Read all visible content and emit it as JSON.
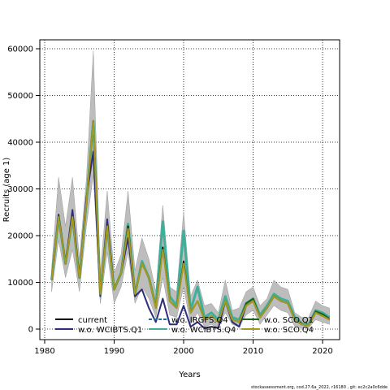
{
  "chart_data": {
    "type": "line",
    "xlabel": "Years",
    "ylabel": "Recruits (age 1)",
    "xlim": [
      1980.5,
      2022
    ],
    "ylim": [
      -2500,
      62000
    ],
    "xticks": [
      1980,
      1990,
      2000,
      2010,
      2020
    ],
    "yticks": [
      0,
      10000,
      20000,
      30000,
      40000,
      50000,
      60000
    ],
    "grid": true,
    "legend_position": "bottom-left",
    "footer": "stockassessment.org, cod.27.6a_2022, r16180 , git: ec2c2a0c6dde",
    "x": [
      1981,
      1982,
      1983,
      1984,
      1985,
      1986,
      1987,
      1988,
      1989,
      1990,
      1991,
      1992,
      1993,
      1994,
      1995,
      1996,
      1997,
      1998,
      1999,
      2000,
      2001,
      2002,
      2003,
      2004,
      2005,
      2006,
      2007,
      2008,
      2009,
      2010,
      2011,
      2012,
      2013,
      2014,
      2015,
      2016,
      2017,
      2018,
      2019,
      2020,
      2021
    ],
    "band": {
      "upper": [
        13000,
        32500,
        22000,
        32500,
        15000,
        32000,
        59500,
        12000,
        29500,
        12000,
        16000,
        29500,
        12500,
        19500,
        15000,
        8000,
        26500,
        9000,
        8000,
        25000,
        7000,
        10500,
        5000,
        5500,
        3500,
        10500,
        4000,
        4500,
        8000,
        9000,
        5000,
        6500,
        10500,
        9000,
        8500,
        3500,
        2500,
        2500,
        6000,
        5000,
        4500
      ],
      "lower": [
        8000,
        19000,
        11000,
        17000,
        8000,
        22000,
        33000,
        5500,
        16500,
        5500,
        9000,
        16500,
        5500,
        9000,
        6500,
        2500,
        11000,
        3000,
        2500,
        9000,
        1000,
        3500,
        500,
        1000,
        200,
        3500,
        1000,
        500,
        3000,
        4000,
        1000,
        3000,
        5000,
        4000,
        3500,
        500,
        200,
        200,
        2000,
        1500,
        1000
      ]
    },
    "series": [
      {
        "name": "current",
        "color": "#000000",
        "dash": "solid",
        "values": [
          10500,
          24000,
          14000,
          24000,
          11000,
          27000,
          44500,
          7500,
          22000,
          8500,
          12000,
          22000,
          7500,
          14000,
          11000,
          4500,
          17500,
          6000,
          4500,
          14500,
          3500,
          6000,
          2000,
          2800,
          1500,
          6000,
          2000,
          1500,
          5000,
          6000,
          2500,
          4500,
          7000,
          6000,
          5500,
          2000,
          1000,
          800,
          3500,
          2800,
          2000
        ]
      },
      {
        "name": "w.o. WCIBTS.Q1",
        "color": "#2e2e7a",
        "dash": "solid",
        "values": [
          10500,
          24500,
          14000,
          25500,
          11000,
          28000,
          38000,
          7000,
          23500,
          8500,
          12000,
          19500,
          7000,
          8500,
          4500,
          1500,
          6500,
          1000,
          1000,
          5000,
          500,
          1500,
          200,
          500,
          200,
          6000,
          1500,
          500,
          5000,
          6000,
          2500,
          4500,
          7000,
          6000,
          5500,
          2000,
          1000,
          800,
          3500,
          2800,
          2000
        ]
      },
      {
        "name": "w.o. IRGFS.Q4",
        "color": "#1a6fa0",
        "dash": "dash",
        "values": [
          10500,
          24000,
          14000,
          24000,
          11000,
          27000,
          44500,
          7500,
          22000,
          8500,
          12000,
          22000,
          7500,
          14000,
          11000,
          4500,
          17500,
          6000,
          4500,
          14500,
          3500,
          6000,
          2000,
          2800,
          1500,
          6000,
          2000,
          1500,
          5000,
          6000,
          2500,
          4500,
          7000,
          6000,
          5500,
          2000,
          1000,
          800,
          3500,
          2800,
          2000
        ]
      },
      {
        "name": "w.o. WCIBTS.Q4",
        "color": "#3fae9a",
        "dash": "solid",
        "values": [
          10500,
          24000,
          14000,
          24000,
          11000,
          27000,
          44500,
          7500,
          22000,
          8500,
          12000,
          22500,
          7500,
          14500,
          11000,
          5000,
          23000,
          7000,
          5000,
          21000,
          4000,
          9000,
          2500,
          3500,
          2000,
          7000,
          2500,
          2000,
          5500,
          6500,
          3000,
          5000,
          7500,
          6500,
          6000,
          2500,
          1200,
          1000,
          4000,
          3500,
          2500
        ]
      },
      {
        "name": "w.o. SCO.Q1",
        "color": "#1f5f1f",
        "dash": "solid",
        "values": [
          10500,
          24000,
          14000,
          24000,
          11000,
          27000,
          44500,
          7500,
          22000,
          8500,
          12000,
          22000,
          7500,
          14000,
          11000,
          4500,
          17500,
          6000,
          4500,
          14500,
          3500,
          6000,
          2000,
          2800,
          1500,
          6000,
          2000,
          1500,
          5500,
          6500,
          2500,
          4500,
          7000,
          6000,
          5500,
          2000,
          1000,
          800,
          3800,
          3200,
          2200
        ]
      },
      {
        "name": "w.o. SCO.Q4",
        "color": "#a89a1c",
        "dash": "solid",
        "values": [
          10500,
          24000,
          14000,
          24000,
          11000,
          27000,
          44500,
          7500,
          22000,
          8500,
          12000,
          21500,
          7500,
          14000,
          11000,
          4500,
          17000,
          6000,
          4500,
          14000,
          3500,
          6000,
          2000,
          2800,
          1500,
          6000,
          2000,
          1500,
          5000,
          6000,
          2500,
          4500,
          7000,
          6000,
          5500,
          2000,
          1000,
          800,
          3500,
          2800,
          2000
        ]
      }
    ]
  }
}
